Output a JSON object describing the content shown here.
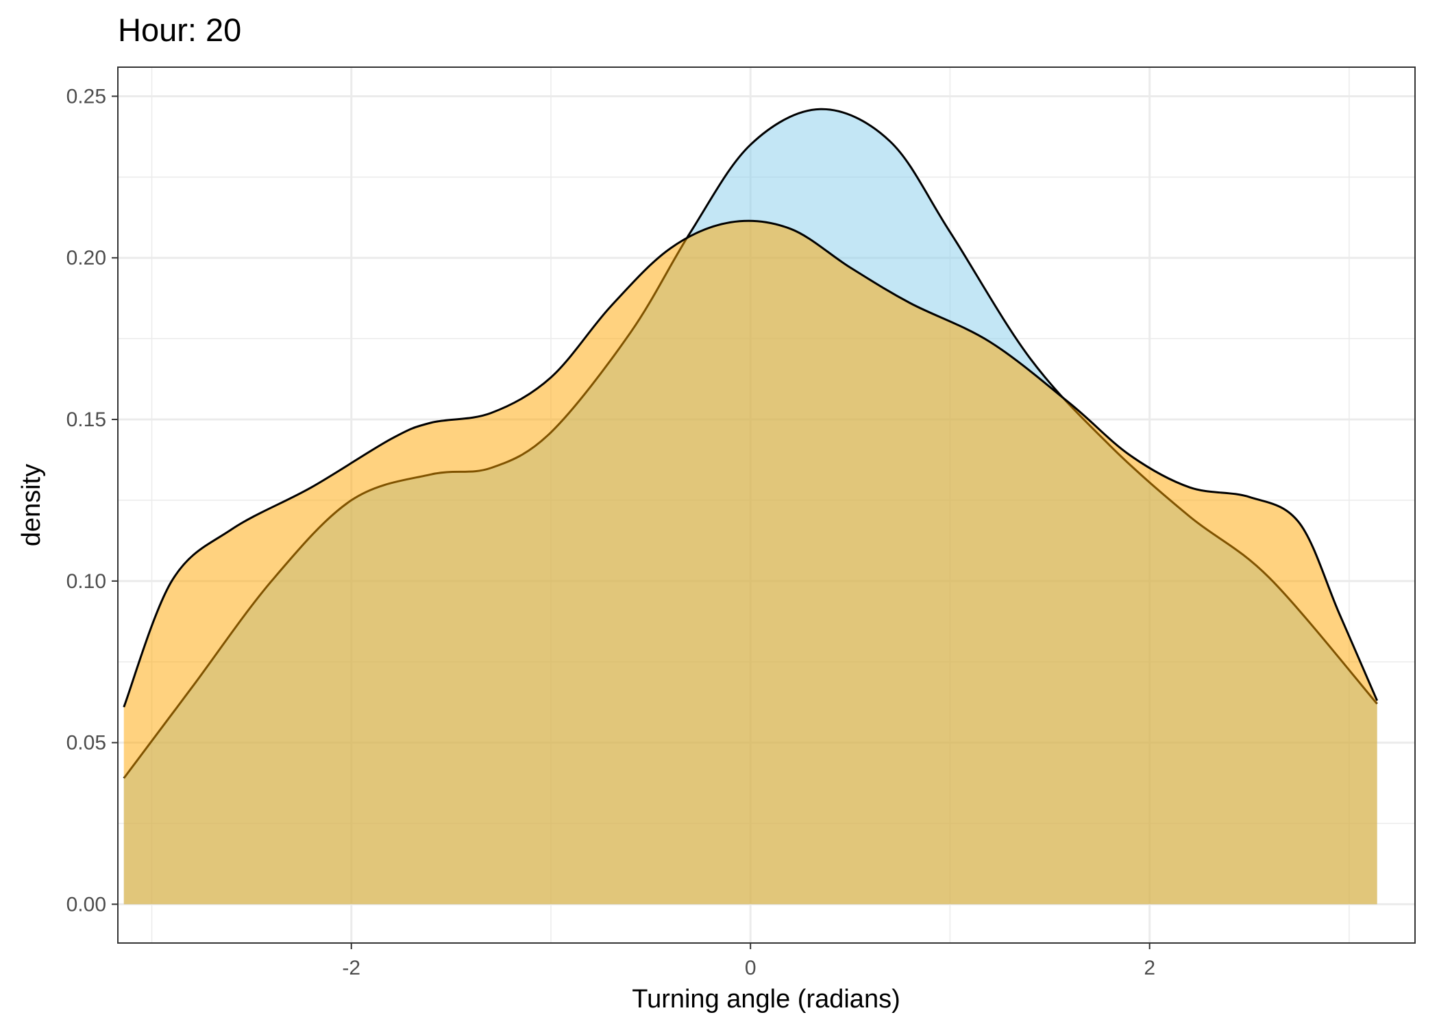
{
  "chart_data": {
    "type": "area",
    "title": "Hour: 20",
    "xlabel": "Turning angle (radians)",
    "ylabel": "density",
    "xlim": [
      -3.17,
      3.33
    ],
    "ylim": [
      -0.012,
      0.259
    ],
    "x_ticks": [
      -2,
      0,
      2
    ],
    "x_tick_labels": [
      "-2",
      "0",
      "2"
    ],
    "y_ticks": [
      0.0,
      0.05,
      0.1,
      0.15,
      0.2,
      0.25
    ],
    "y_tick_labels": [
      "0.00",
      "0.05",
      "0.10",
      "0.15",
      "0.20",
      "0.25"
    ],
    "grid": true,
    "legend": "none",
    "series": [
      {
        "color": "#87ceeb",
        "x": [
          -3.14,
          -2.8,
          -2.4,
          -2.0,
          -1.6,
          -1.3,
          -1.0,
          -0.6,
          -0.3,
          0.0,
          0.35,
          0.7,
          1.0,
          1.4,
          1.8,
          2.2,
          2.6,
          3.14
        ],
        "values": [
          0.039,
          0.067,
          0.1,
          0.125,
          0.133,
          0.135,
          0.146,
          0.177,
          0.208,
          0.235,
          0.246,
          0.236,
          0.208,
          0.169,
          0.142,
          0.12,
          0.101,
          0.062
        ]
      },
      {
        "color": "#ffa500",
        "x": [
          -3.14,
          -2.9,
          -2.6,
          -2.2,
          -1.8,
          -1.6,
          -1.3,
          -1.0,
          -0.7,
          -0.4,
          -0.1,
          0.2,
          0.5,
          0.8,
          1.2,
          1.6,
          1.9,
          2.2,
          2.5,
          2.75,
          2.95,
          3.14
        ],
        "values": [
          0.061,
          0.1,
          0.116,
          0.129,
          0.144,
          0.149,
          0.152,
          0.163,
          0.185,
          0.203,
          0.211,
          0.209,
          0.197,
          0.186,
          0.174,
          0.155,
          0.139,
          0.129,
          0.126,
          0.118,
          0.09,
          0.063
        ]
      }
    ]
  }
}
